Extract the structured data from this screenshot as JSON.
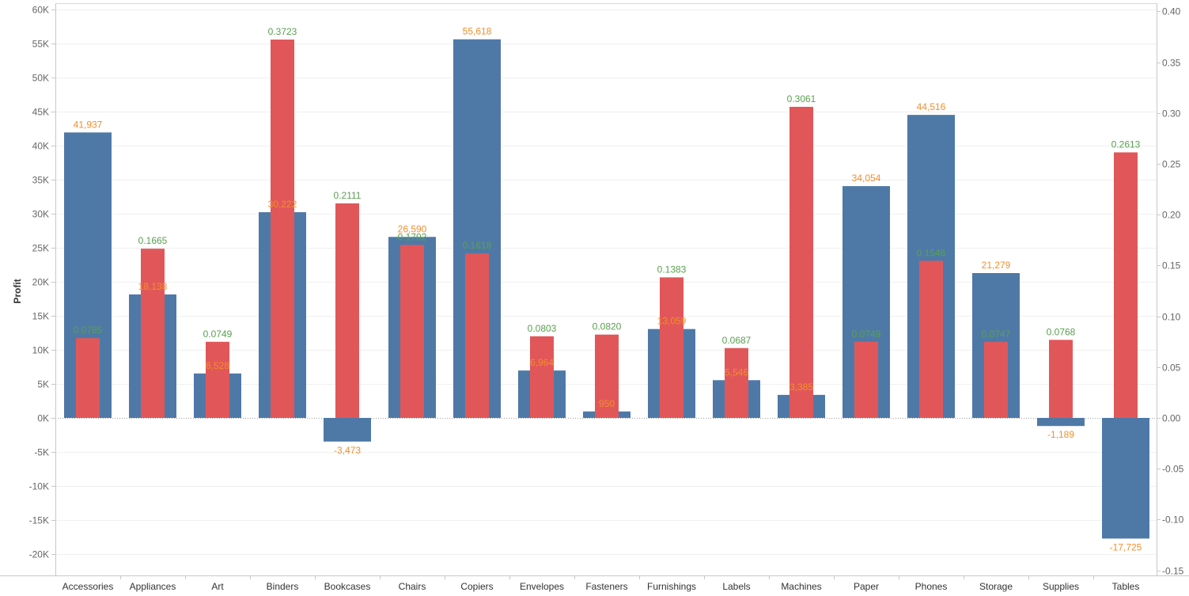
{
  "chart_data": {
    "type": "bar",
    "title": "",
    "ylabel": "Profit",
    "y2label": "",
    "categories": [
      "Accessories",
      "Appliances",
      "Art",
      "Binders",
      "Bookcases",
      "Chairs",
      "Copiers",
      "Envelopes",
      "Fasteners",
      "Furnishings",
      "Labels",
      "Machines",
      "Paper",
      "Phones",
      "Storage",
      "Supplies",
      "Tables"
    ],
    "series": [
      {
        "axis": "left",
        "color": "#4e79a7",
        "label_color": "#f28e2b",
        "values": [
          41937,
          18138,
          6528,
          30222,
          -3473,
          26590,
          55618,
          6964,
          950,
          13059,
          5546,
          3385,
          34054,
          44516,
          21279,
          -1189,
          -17725
        ],
        "labels": [
          "41,937",
          "18,138",
          "6,528",
          "30,222",
          "-3,473",
          "26,590",
          "55,618",
          "6,964",
          "950",
          "13,059",
          "5,546",
          "3,385",
          "34,054",
          "44,516",
          "21,279",
          "-1,189",
          "-17,725"
        ]
      },
      {
        "axis": "right",
        "color": "#e15759",
        "label_color": "#59a14f",
        "values": [
          0.0785,
          0.1665,
          0.0749,
          0.3723,
          0.2111,
          0.1702,
          0.1618,
          0.0803,
          0.082,
          0.1383,
          0.0687,
          0.3061,
          0.0749,
          0.1546,
          0.0747,
          0.0768,
          0.2613
        ],
        "labels": [
          "0.0785",
          "0.1665",
          "0.0749",
          "0.3723",
          "0.2111",
          "0.1702",
          "0.1618",
          "0.0803",
          "0.0820",
          "0.1383",
          "0.0687",
          "0.3061",
          "0.0749",
          "0.1546",
          "0.0747",
          "0.0768",
          "0.2613"
        ]
      }
    ],
    "y_axis": {
      "min": -25000,
      "max": 60000,
      "ticks": [
        60000,
        55000,
        50000,
        45000,
        40000,
        35000,
        30000,
        25000,
        20000,
        15000,
        10000,
        5000,
        0,
        -5000,
        -10000,
        -15000,
        -20000
      ],
      "tick_labels": [
        "60K",
        "55K",
        "50K",
        "45K",
        "40K",
        "35K",
        "30K",
        "25K",
        "20K",
        "15K",
        "10K",
        "5K",
        "0K",
        "-5K",
        "-10K",
        "-15K",
        "-20K"
      ]
    },
    "y2_axis": {
      "min": -0.15,
      "max": 0.4,
      "ticks": [
        0.4,
        0.35,
        0.3,
        0.25,
        0.2,
        0.15,
        0.1,
        0.05,
        0.0,
        -0.05,
        -0.1,
        -0.15
      ],
      "tick_labels": [
        "0.40",
        "0.35",
        "0.30",
        "0.25",
        "0.20",
        "0.15",
        "0.10",
        "0.05",
        "0.00",
        "-0.05",
        "-0.10",
        "-0.15"
      ]
    },
    "grid": true,
    "legend": "none"
  }
}
